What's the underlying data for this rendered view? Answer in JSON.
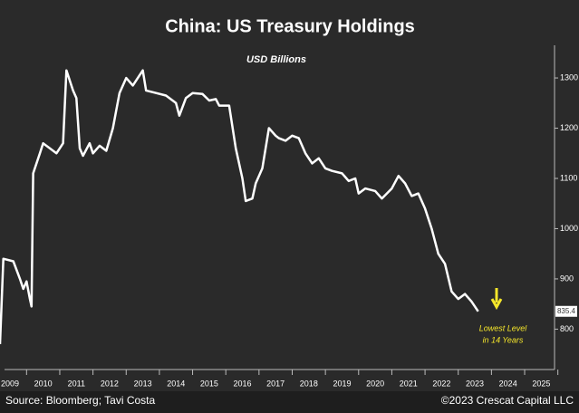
{
  "chart_data": {
    "type": "line",
    "title": "China: US Treasury Holdings",
    "subtitle": "USD Billions",
    "annotations": [
      "Lowest Level",
      "in 14 Years"
    ],
    "source": "Source: Bloomberg; Tavi Costa",
    "copyright": "©2023 Crescat Capital LLC",
    "xlim": [
      2009.2,
      2025.9
    ],
    "xticks": [
      {
        "value": 2009.5,
        "label": "2009"
      },
      {
        "value": 2010.5,
        "label": "2010"
      },
      {
        "value": 2011.5,
        "label": "2011"
      },
      {
        "value": 2012.5,
        "label": "2012"
      },
      {
        "value": 2013.5,
        "label": "2013"
      },
      {
        "value": 2014.5,
        "label": "2014"
      },
      {
        "value": 2015.5,
        "label": "2015"
      },
      {
        "value": 2016.5,
        "label": "2016"
      },
      {
        "value": 2017.5,
        "label": "2017"
      },
      {
        "value": 2018.5,
        "label": "2018"
      },
      {
        "value": 2019.5,
        "label": "2019"
      },
      {
        "value": 2020.5,
        "label": "2020"
      },
      {
        "value": 2021.5,
        "label": "2021"
      },
      {
        "value": 2022.5,
        "label": "2022"
      },
      {
        "value": 2023.5,
        "label": "2023"
      },
      {
        "value": 2024.5,
        "label": "2024"
      },
      {
        "value": 2025.5,
        "label": "2025"
      }
    ],
    "ylim": [
      725,
      1365
    ],
    "yticks": [
      800,
      900,
      1000,
      1100,
      1200,
      1300
    ],
    "series": [
      {
        "name": "China US Treasury Holdings",
        "color": "#ffffff",
        "x": [
          2009.2,
          2009.3,
          2009.6,
          2009.8,
          2009.9,
          2010.0,
          2010.1,
          2010.15,
          2010.2,
          2010.4,
          2010.5,
          2010.7,
          2010.9,
          2011.0,
          2011.1,
          2011.2,
          2011.4,
          2011.5,
          2011.6,
          2011.7,
          2011.9,
          2012.0,
          2012.2,
          2012.4,
          2012.6,
          2012.8,
          2013.0,
          2013.2,
          2013.4,
          2013.5,
          2013.6,
          2013.9,
          2014.2,
          2014.5,
          2014.6,
          2014.8,
          2015.0,
          2015.3,
          2015.5,
          2015.7,
          2015.8,
          2016.1,
          2016.3,
          2016.5,
          2016.6,
          2016.8,
          2016.9,
          2017.1,
          2017.3,
          2017.5,
          2017.6,
          2017.8,
          2018.0,
          2018.2,
          2018.4,
          2018.6,
          2018.8,
          2019.0,
          2019.2,
          2019.5,
          2019.7,
          2019.9,
          2020.0,
          2020.2,
          2020.5,
          2020.7,
          2021.0,
          2021.2,
          2021.4,
          2021.6,
          2021.8,
          2022.0,
          2022.2,
          2022.4,
          2022.6,
          2022.8,
          2023.0,
          2023.2,
          2023.4,
          2023.6
        ],
        "values": [
          770,
          940,
          935,
          900,
          880,
          895,
          860,
          845,
          1110,
          1150,
          1170,
          1160,
          1150,
          1160,
          1170,
          1315,
          1275,
          1260,
          1160,
          1145,
          1170,
          1150,
          1165,
          1155,
          1200,
          1270,
          1300,
          1285,
          1305,
          1315,
          1275,
          1270,
          1265,
          1250,
          1225,
          1260,
          1270,
          1268,
          1255,
          1258,
          1245,
          1245,
          1160,
          1100,
          1055,
          1060,
          1090,
          1120,
          1200,
          1185,
          1180,
          1175,
          1185,
          1180,
          1150,
          1130,
          1140,
          1120,
          1115,
          1110,
          1095,
          1100,
          1070,
          1080,
          1075,
          1060,
          1080,
          1105,
          1090,
          1065,
          1070,
          1040,
          1000,
          950,
          930,
          875,
          860,
          870,
          855,
          835.4
        ]
      }
    ]
  }
}
